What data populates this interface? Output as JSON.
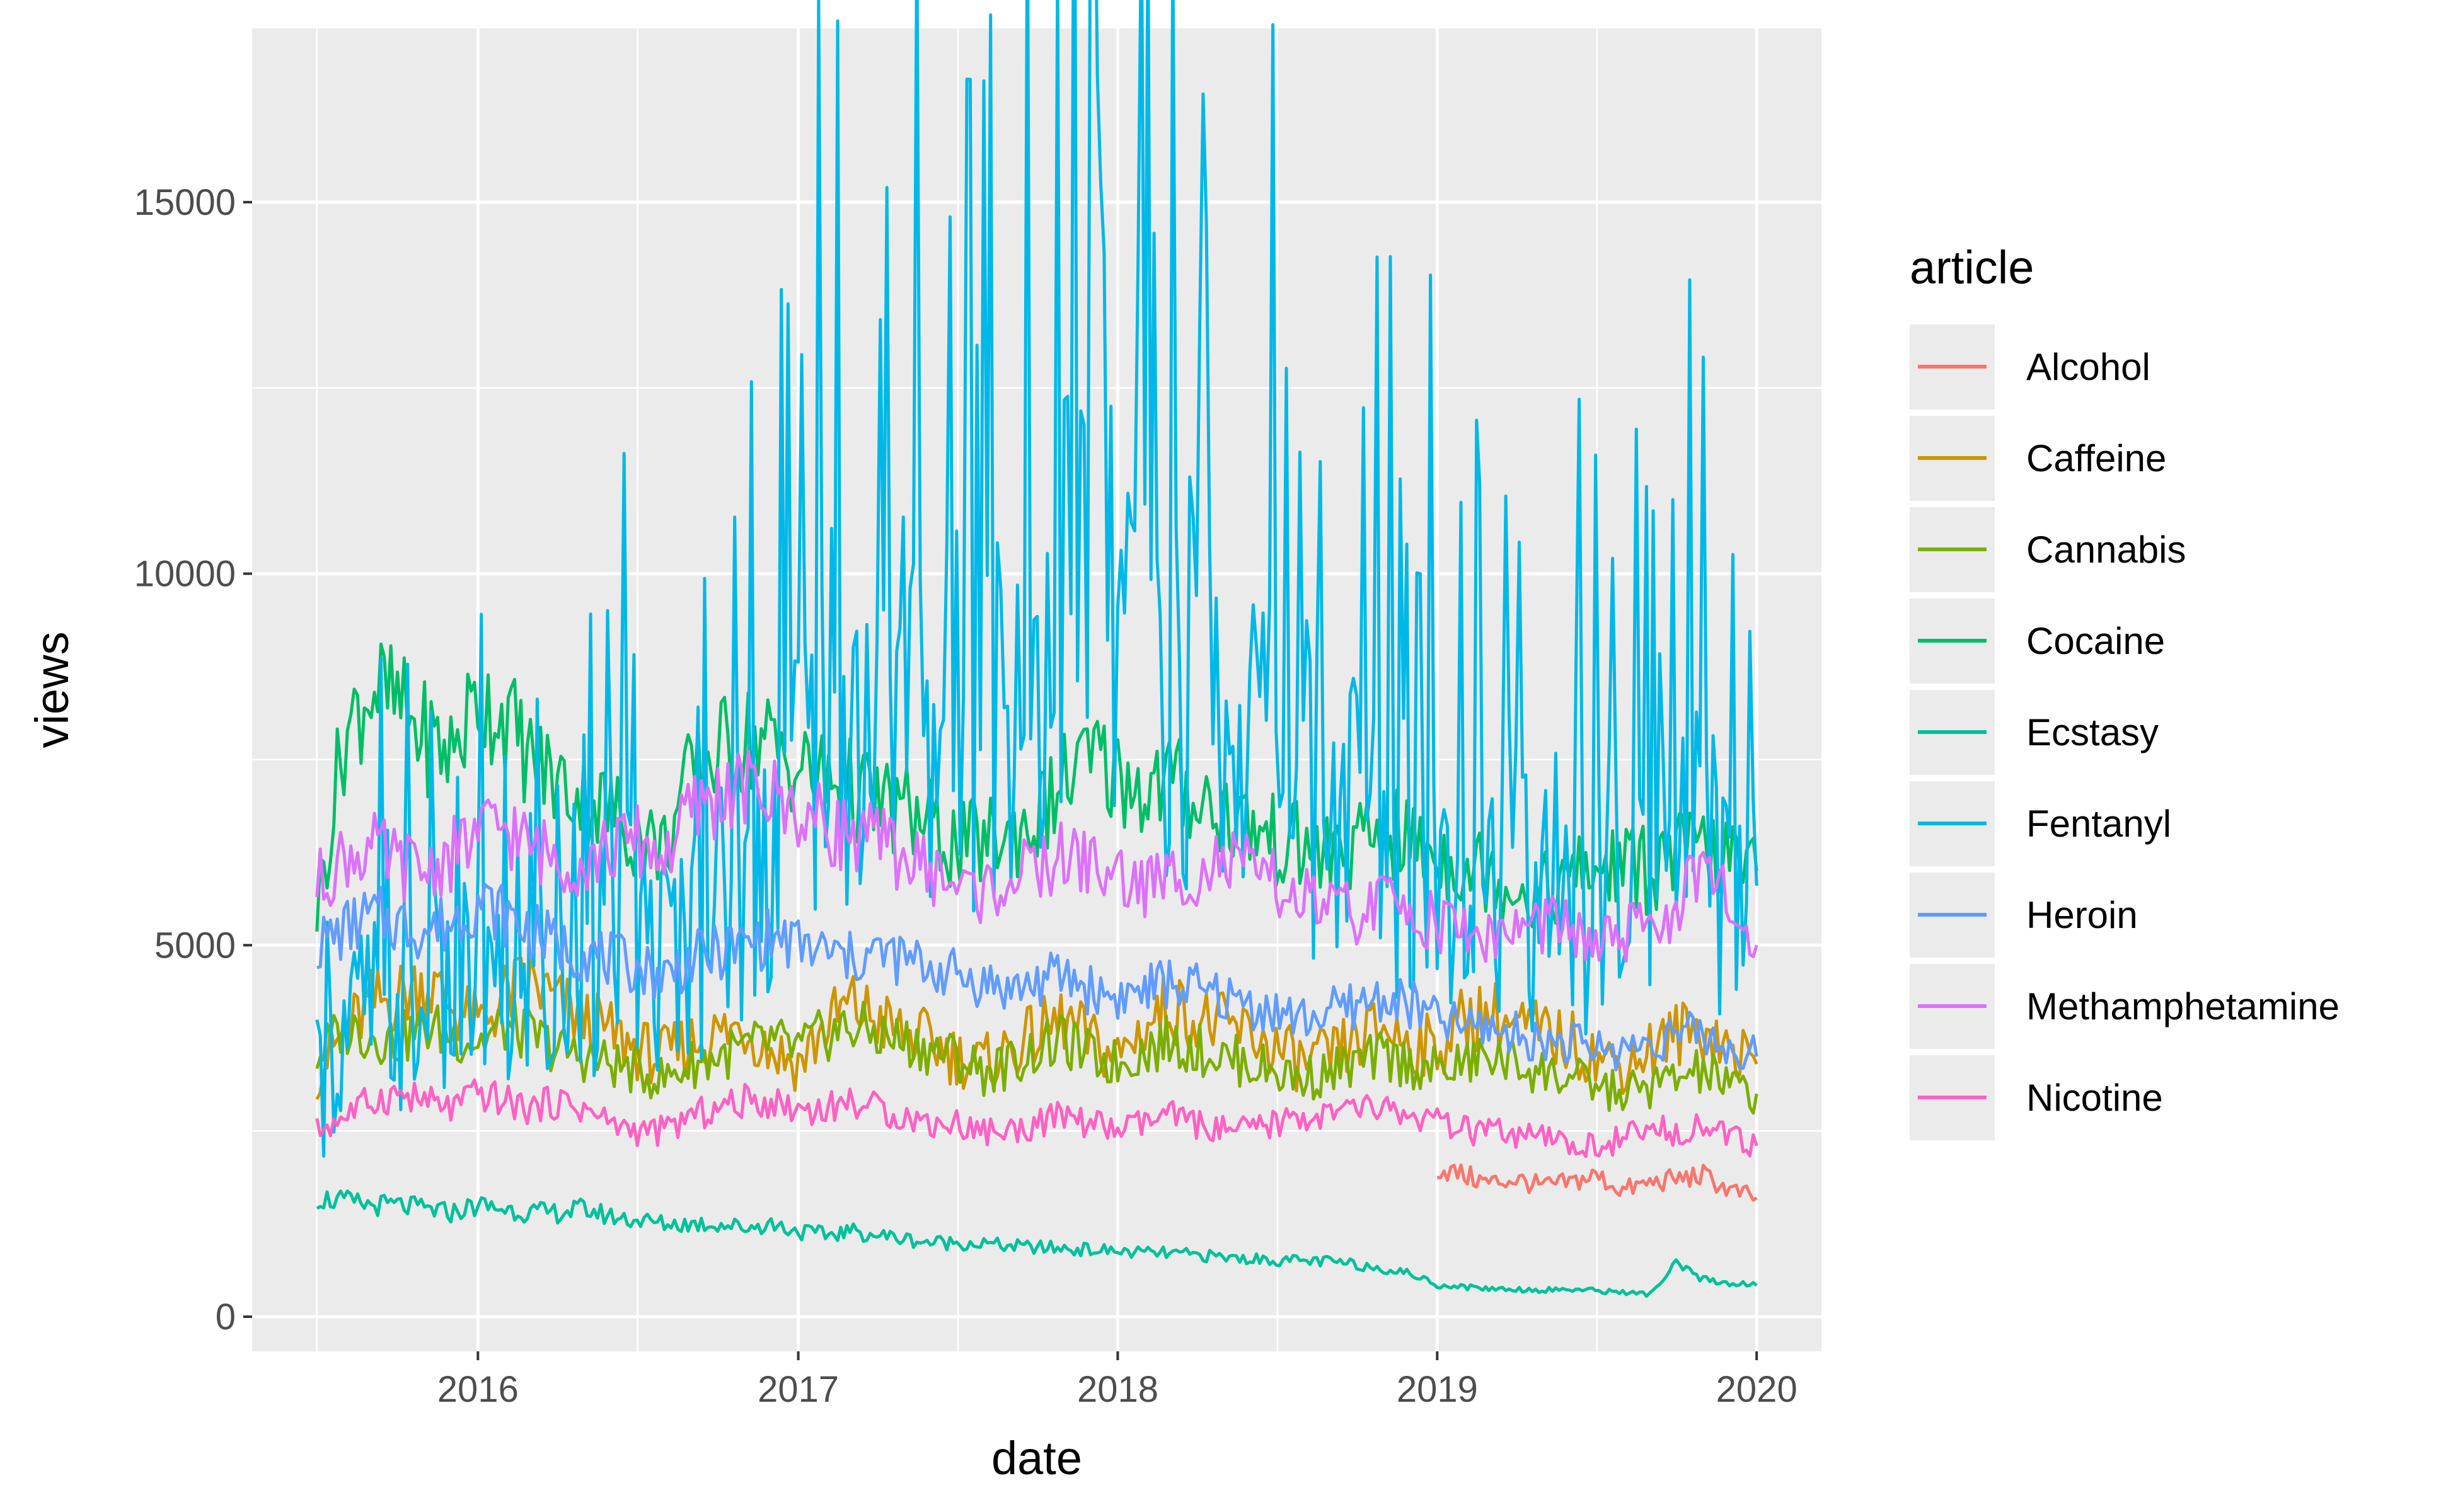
{
  "chart_data": {
    "type": "line",
    "xlabel": "date",
    "ylabel": "views",
    "x_ticks": [
      "2016",
      "2017",
      "2018",
      "2019",
      "2020"
    ],
    "y_ticks": [
      "0",
      "5000",
      "10000",
      "15000"
    ],
    "xlim": [
      "2015-07-01",
      "2020-01-01"
    ],
    "ylim": [
      0,
      17000
    ],
    "grid": true,
    "legend_title": "article",
    "legend_position": "right",
    "x": [
      "2015-07-01",
      "2015-08-01",
      "2015-09-01",
      "2015-10-01",
      "2015-11-01",
      "2015-12-01",
      "2016-01-01",
      "2016-02-01",
      "2016-03-01",
      "2016-04-01",
      "2016-05-01",
      "2016-06-01",
      "2016-07-01",
      "2016-08-01",
      "2016-09-01",
      "2016-10-01",
      "2016-11-01",
      "2016-12-01",
      "2017-01-01",
      "2017-02-01",
      "2017-03-01",
      "2017-04-01",
      "2017-05-01",
      "2017-06-01",
      "2017-07-01",
      "2017-08-01",
      "2017-09-01",
      "2017-10-01",
      "2017-11-01",
      "2017-12-01",
      "2018-01-01",
      "2018-02-01",
      "2018-03-01",
      "2018-04-01",
      "2018-05-01",
      "2018-06-01",
      "2018-07-01",
      "2018-08-01",
      "2018-09-01",
      "2018-10-01",
      "2018-11-01",
      "2018-12-01",
      "2019-01-01",
      "2019-02-01",
      "2019-03-01",
      "2019-04-01",
      "2019-05-01",
      "2019-06-01",
      "2019-07-01",
      "2019-08-01",
      "2019-09-01",
      "2019-10-01",
      "2019-11-01",
      "2019-12-01",
      "2020-01-01"
    ],
    "series": [
      {
        "name": "Alcohol",
        "color": "#F8766D",
        "values": [
          null,
          null,
          null,
          null,
          null,
          null,
          null,
          null,
          null,
          null,
          null,
          null,
          null,
          null,
          null,
          null,
          null,
          null,
          null,
          null,
          null,
          null,
          null,
          null,
          null,
          null,
          null,
          null,
          null,
          null,
          null,
          null,
          null,
          null,
          null,
          null,
          null,
          null,
          null,
          null,
          null,
          null,
          2000,
          1900,
          1800,
          1850,
          1750,
          1800,
          1900,
          1700,
          1800,
          1850,
          1900,
          1700,
          1600
        ]
      },
      {
        "name": "Caffeine",
        "color": "#CD9600",
        "values": [
          3300,
          3800,
          4200,
          4300,
          4500,
          4200,
          3900,
          4300,
          4500,
          4200,
          4000,
          3800,
          3600,
          3500,
          3700,
          3800,
          3900,
          3600,
          3400,
          3900,
          4200,
          4000,
          3800,
          3700,
          3500,
          3400,
          3600,
          3800,
          4000,
          3700,
          3500,
          3900,
          4200,
          4000,
          3900,
          3800,
          3600,
          3400,
          3500,
          3700,
          3900,
          3700,
          3600,
          4000,
          4100,
          3900,
          3800,
          3700,
          3500,
          3400,
          3600,
          3800,
          3900,
          3600,
          3400
        ]
      },
      {
        "name": "Cannabis",
        "color": "#7CAE00",
        "values": [
          3500,
          3900,
          3800,
          3700,
          3900,
          3800,
          3700,
          3900,
          3800,
          3600,
          3500,
          3400,
          3300,
          3200,
          3400,
          3500,
          3600,
          3700,
          3600,
          3800,
          3900,
          3800,
          3700,
          3600,
          3500,
          3300,
          3400,
          3600,
          3700,
          3500,
          3400,
          3600,
          3700,
          3600,
          3500,
          3400,
          3300,
          3200,
          3300,
          3400,
          3500,
          3400,
          3300,
          3400,
          3500,
          3400,
          3300,
          3200,
          3100,
          3000,
          3100,
          3200,
          3300,
          3100,
          3000
        ]
      },
      {
        "name": "Cocaine",
        "color": "#00BE67",
        "values": [
          5500,
          7800,
          8500,
          8200,
          7800,
          7600,
          8300,
          8100,
          7500,
          7200,
          7000,
          6800,
          6500,
          6300,
          7300,
          7600,
          7800,
          7700,
          7400,
          7200,
          7100,
          6900,
          6800,
          6600,
          6300,
          6400,
          6500,
          6700,
          7200,
          7500,
          7300,
          7100,
          7200,
          7000,
          6800,
          6600,
          6400,
          6300,
          6200,
          6300,
          6500,
          6400,
          6200,
          6100,
          6000,
          5800,
          5700,
          5900,
          6000,
          6100,
          6000,
          6200,
          6300,
          6100,
          6000
        ]
      },
      {
        "name": "Ecstasy",
        "color": "#00C19A",
        "values": [
          1600,
          1550,
          1500,
          1500,
          1450,
          1400,
          1500,
          1450,
          1400,
          1400,
          1450,
          1350,
          1300,
          1250,
          1250,
          1250,
          1200,
          1250,
          1150,
          1100,
          1150,
          1100,
          1050,
          1000,
          1000,
          980,
          950,
          930,
          920,
          900,
          880,
          860,
          850,
          830,
          800,
          780,
          760,
          750,
          740,
          700,
          650,
          580,
          430,
          400,
          380,
          370,
          360,
          370,
          350,
          330,
          300,
          700,
          500,
          450,
          420
        ]
      },
      {
        "name": "Fentanyl",
        "color": "#00B8E7",
        "values": [
          3000,
          3800,
          4200,
          4000,
          3800,
          4200,
          4500,
          4000,
          3800,
          4200,
          4500,
          5500,
          5000,
          4800,
          5200,
          5500,
          5800,
          6500,
          7500,
          7800,
          8200,
          8000,
          8500,
          8200,
          8000,
          8200,
          8500,
          9000,
          10000,
          9500,
          9000,
          8800,
          8600,
          8400,
          8200,
          8000,
          7500,
          7200,
          7000,
          6800,
          6600,
          6400,
          6200,
          6300,
          6100,
          6000,
          5800,
          5700,
          5600,
          5800,
          5900,
          6000,
          6200,
          6000,
          5800
        ]
      },
      {
        "name": "Heroin",
        "color": "#619CFF",
        "values": [
          5000,
          5200,
          5400,
          5300,
          5200,
          5300,
          5600,
          5400,
          5200,
          5000,
          4900,
          4800,
          4700,
          4600,
          4800,
          4900,
          5000,
          5100,
          5000,
          4900,
          4800,
          4900,
          4800,
          4700,
          4600,
          4500,
          4400,
          4500,
          4600,
          4400,
          4300,
          4400,
          4500,
          4400,
          4300,
          4200,
          4100,
          4000,
          4100,
          4200,
          4300,
          4200,
          4000,
          3900,
          3900,
          3800,
          3700,
          3700,
          3600,
          3600,
          3700,
          3800,
          3800,
          3600,
          3500
        ]
      },
      {
        "name": "Methamphetamine",
        "color": "#DB72FB",
        "values": [
          5800,
          6200,
          6300,
          6100,
          6000,
          6200,
          6500,
          6600,
          6300,
          6200,
          6100,
          6300,
          6400,
          6200,
          6800,
          7000,
          7100,
          7000,
          6800,
          6600,
          6500,
          6400,
          6200,
          6000,
          5800,
          5700,
          5900,
          6000,
          6200,
          6100,
          5900,
          5800,
          5900,
          6000,
          6100,
          6000,
          5800,
          5600,
          5500,
          5400,
          5600,
          5500,
          5300,
          5200,
          5100,
          5200,
          5300,
          5200,
          5000,
          5100,
          5300,
          5500,
          6000,
          5500,
          5000
        ]
      },
      {
        "name": "Nicotine",
        "color": "#FF61C3",
        "values": [
          2500,
          2700,
          2900,
          3000,
          2900,
          2800,
          3000,
          2900,
          2800,
          2900,
          2800,
          2600,
          2500,
          2500,
          2700,
          2800,
          2900,
          2900,
          2800,
          2800,
          2900,
          2800,
          2700,
          2600,
          2600,
          2500,
          2500,
          2600,
          2700,
          2600,
          2500,
          2600,
          2700,
          2600,
          2500,
          2500,
          2600,
          2700,
          2700,
          2800,
          2800,
          2700,
          2600,
          2500,
          2500,
          2400,
          2400,
          2300,
          2300,
          2400,
          2500,
          2500,
          2600,
          2400,
          2300
        ]
      }
    ]
  }
}
